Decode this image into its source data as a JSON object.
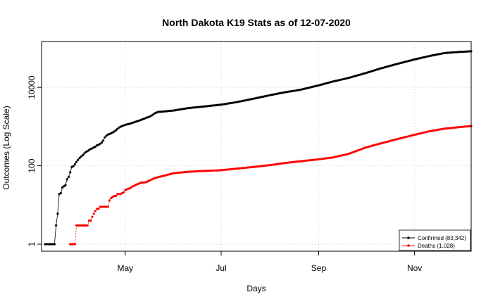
{
  "chart_data": {
    "type": "line",
    "title": "North Dakota K19 Stats as of 12-07-2020",
    "xlabel": "Days",
    "ylabel": "Outcomes (Log Scale)",
    "y_scale": "log",
    "grid": true,
    "legend_position": "bottom-right",
    "x_range": [
      "2020-03-11",
      "2020-12-07"
    ],
    "ylim": [
      1,
      90000
    ],
    "x_ticks": [
      {
        "date": "2020-05-01",
        "label": "May"
      },
      {
        "date": "2020-07-01",
        "label": "Jul"
      },
      {
        "date": "2020-09-01",
        "label": "Sep"
      },
      {
        "date": "2020-11-01",
        "label": "Nov"
      }
    ],
    "y_ticks": [
      {
        "value": 1,
        "label": "1"
      },
      {
        "value": 100,
        "label": "100"
      },
      {
        "value": 10000,
        "label": "10000"
      }
    ],
    "series": [
      {
        "name": "Confirmed (83,342)",
        "color": "#000000",
        "points": [
          [
            "2020-03-11",
            1
          ],
          [
            "2020-03-12",
            1
          ],
          [
            "2020-03-13",
            1
          ],
          [
            "2020-03-14",
            1
          ],
          [
            "2020-03-15",
            1
          ],
          [
            "2020-03-16",
            1
          ],
          [
            "2020-03-17",
            1
          ],
          [
            "2020-03-18",
            3
          ],
          [
            "2020-03-19",
            6
          ],
          [
            "2020-03-20",
            19
          ],
          [
            "2020-03-21",
            20
          ],
          [
            "2020-03-22",
            28
          ],
          [
            "2020-03-23",
            30
          ],
          [
            "2020-03-24",
            32
          ],
          [
            "2020-03-25",
            45
          ],
          [
            "2020-03-26",
            52
          ],
          [
            "2020-03-27",
            68
          ],
          [
            "2020-03-28",
            94
          ],
          [
            "2020-03-29",
            98
          ],
          [
            "2020-03-30",
            109
          ],
          [
            "2020-03-31",
            126
          ],
          [
            "2020-04-01",
            142
          ],
          [
            "2020-04-02",
            159
          ],
          [
            "2020-04-03",
            173
          ],
          [
            "2020-04-04",
            186
          ],
          [
            "2020-04-05",
            207
          ],
          [
            "2020-04-06",
            225
          ],
          [
            "2020-04-07",
            237
          ],
          [
            "2020-04-08",
            251
          ],
          [
            "2020-04-09",
            269
          ],
          [
            "2020-04-10",
            278
          ],
          [
            "2020-04-11",
            293
          ],
          [
            "2020-04-12",
            308
          ],
          [
            "2020-04-13",
            331
          ],
          [
            "2020-04-14",
            341
          ],
          [
            "2020-04-15",
            365
          ],
          [
            "2020-04-16",
            393
          ],
          [
            "2020-04-17",
            439
          ],
          [
            "2020-04-18",
            528
          ],
          [
            "2020-04-19",
            585
          ],
          [
            "2020-04-20",
            627
          ],
          [
            "2020-04-21",
            644
          ],
          [
            "2020-04-22",
            679
          ],
          [
            "2020-04-23",
            709
          ],
          [
            "2020-04-24",
            748
          ],
          [
            "2020-04-25",
            803
          ],
          [
            "2020-04-26",
            867
          ],
          [
            "2020-04-27",
            942
          ],
          [
            "2020-04-28",
            991
          ],
          [
            "2020-04-29",
            1033
          ],
          [
            "2020-04-30",
            1067
          ],
          [
            "2020-05-01",
            1107
          ],
          [
            "2020-05-03",
            1153
          ],
          [
            "2020-05-06",
            1266
          ],
          [
            "2020-05-10",
            1426
          ],
          [
            "2020-05-14",
            1647
          ],
          [
            "2020-05-17",
            1830
          ],
          [
            "2020-05-20",
            2200
          ],
          [
            "2020-05-22",
            2367
          ],
          [
            "2020-05-25",
            2418
          ],
          [
            "2020-05-28",
            2482
          ],
          [
            "2020-06-01",
            2577
          ],
          [
            "2020-06-10",
            2959
          ],
          [
            "2020-06-20",
            3250
          ],
          [
            "2020-07-01",
            3630
          ],
          [
            "2020-07-10",
            4150
          ],
          [
            "2020-07-20",
            4990
          ],
          [
            "2020-08-01",
            6310
          ],
          [
            "2020-08-10",
            7440
          ],
          [
            "2020-08-20",
            8630
          ],
          [
            "2020-09-01",
            11250
          ],
          [
            "2020-09-10",
            14050
          ],
          [
            "2020-09-20",
            17430
          ],
          [
            "2020-10-01",
            23230
          ],
          [
            "2020-10-10",
            30070
          ],
          [
            "2020-10-20",
            38770
          ],
          [
            "2020-11-01",
            51700
          ],
          [
            "2020-11-10",
            62480
          ],
          [
            "2020-11-20",
            75150
          ],
          [
            "2020-11-30",
            80400
          ],
          [
            "2020-12-07",
            83342
          ]
        ]
      },
      {
        "name": "Deaths (1,028)",
        "color": "#ff0000",
        "points": [
          [
            "2020-03-27",
            1
          ],
          [
            "2020-03-28",
            1
          ],
          [
            "2020-03-29",
            1
          ],
          [
            "2020-03-30",
            1
          ],
          [
            "2020-03-31",
            3
          ],
          [
            "2020-04-01",
            3
          ],
          [
            "2020-04-02",
            3
          ],
          [
            "2020-04-03",
            3
          ],
          [
            "2020-04-04",
            3
          ],
          [
            "2020-04-05",
            3
          ],
          [
            "2020-04-06",
            3
          ],
          [
            "2020-04-07",
            3
          ],
          [
            "2020-04-08",
            4
          ],
          [
            "2020-04-09",
            4
          ],
          [
            "2020-04-10",
            5
          ],
          [
            "2020-04-11",
            6
          ],
          [
            "2020-04-12",
            7
          ],
          [
            "2020-04-13",
            8
          ],
          [
            "2020-04-14",
            8
          ],
          [
            "2020-04-15",
            9
          ],
          [
            "2020-04-16",
            9
          ],
          [
            "2020-04-17",
            9
          ],
          [
            "2020-04-18",
            9
          ],
          [
            "2020-04-19",
            9
          ],
          [
            "2020-04-20",
            9
          ],
          [
            "2020-04-21",
            13
          ],
          [
            "2020-04-22",
            15
          ],
          [
            "2020-04-23",
            16
          ],
          [
            "2020-04-24",
            17
          ],
          [
            "2020-04-25",
            17
          ],
          [
            "2020-04-26",
            19
          ],
          [
            "2020-04-27",
            19
          ],
          [
            "2020-04-28",
            19
          ],
          [
            "2020-04-29",
            20
          ],
          [
            "2020-04-30",
            21
          ],
          [
            "2020-05-01",
            24
          ],
          [
            "2020-05-02",
            25
          ],
          [
            "2020-05-04",
            27
          ],
          [
            "2020-05-06",
            30
          ],
          [
            "2020-05-08",
            33
          ],
          [
            "2020-05-11",
            37
          ],
          [
            "2020-05-14",
            38
          ],
          [
            "2020-05-17",
            43
          ],
          [
            "2020-05-20",
            49
          ],
          [
            "2020-05-25",
            55
          ],
          [
            "2020-06-01",
            65
          ],
          [
            "2020-06-10",
            70
          ],
          [
            "2020-06-20",
            74
          ],
          [
            "2020-07-01",
            77
          ],
          [
            "2020-07-10",
            84
          ],
          [
            "2020-07-20",
            92
          ],
          [
            "2020-08-01",
            104
          ],
          [
            "2020-08-10",
            117
          ],
          [
            "2020-08-20",
            130
          ],
          [
            "2020-09-01",
            146
          ],
          [
            "2020-09-10",
            163
          ],
          [
            "2020-09-20",
            201
          ],
          [
            "2020-10-01",
            293
          ],
          [
            "2020-10-10",
            367
          ],
          [
            "2020-10-20",
            468
          ],
          [
            "2020-11-01",
            618
          ],
          [
            "2020-11-10",
            752
          ],
          [
            "2020-11-20",
            884
          ],
          [
            "2020-11-30",
            974
          ],
          [
            "2020-12-07",
            1028
          ]
        ]
      }
    ]
  }
}
